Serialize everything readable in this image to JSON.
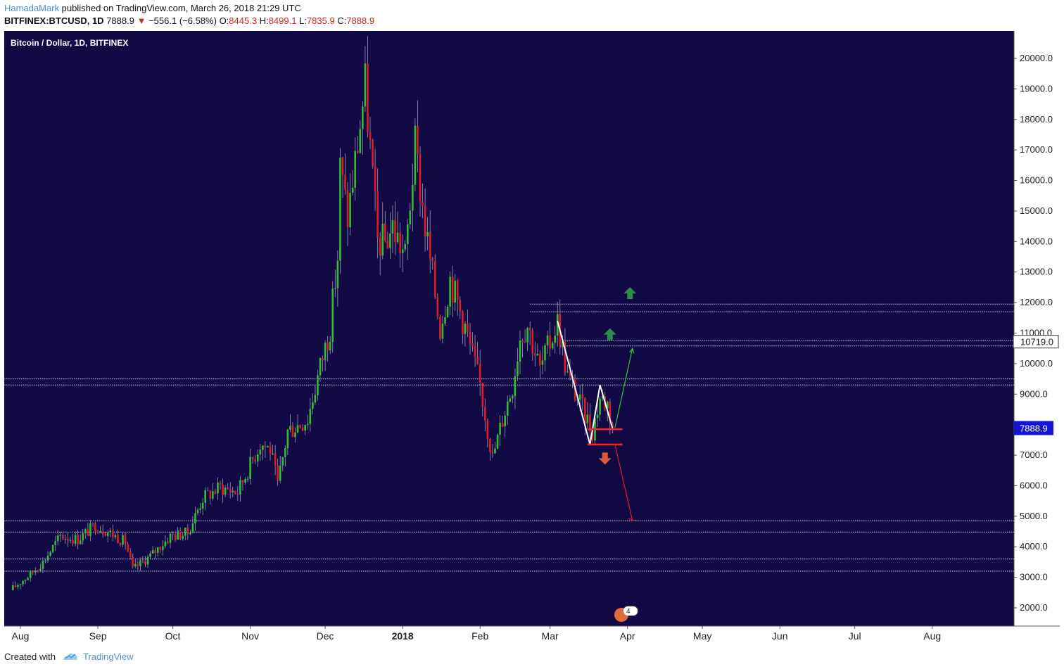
{
  "header": {
    "author": "HamadaMark",
    "published": " published on TradingView.com, March 26, 2018 21:29 UTC",
    "symbol": "BITFINEX:BTCUSD, 1D",
    "last": "7888.9",
    "change": "−556.1 (−6.58%)",
    "o_label": "O:",
    "o_val": "8445.3",
    "h_label": "H:",
    "h_val": "8499.1",
    "l_label": "L:",
    "l_val": "7835.9",
    "c_label": "C:",
    "c_val": "7888.9"
  },
  "footer": {
    "created_with": "Created with",
    "brand": "TradingView"
  },
  "colors": {
    "background": "#110a45",
    "up": "#2fbf2f",
    "down": "#e01b24",
    "badge": "#1414d2",
    "up_arrow": "#2e8b4a",
    "down_arrow": "#e05a3a"
  },
  "chart_data": {
    "type": "candlestick",
    "title": "Bitcoin / Dollar, 1D, BITFINEX",
    "ylim": [
      1800,
      20600
    ],
    "y_ticks": [
      "20000.0",
      "19000.0",
      "18000.0",
      "17000.0",
      "16000.0",
      "15000.0",
      "14000.0",
      "13000.0",
      "12000.0",
      "11000.0",
      "10000.0",
      "9000.0",
      "8000.0",
      "7000.0",
      "6000.0",
      "5000.0",
      "4000.0",
      "3000.0",
      "2000.0"
    ],
    "x_ticks": [
      {
        "label": "Aug",
        "date": "2017-08-01",
        "bold": false
      },
      {
        "label": "Sep",
        "date": "2017-09-01",
        "bold": false
      },
      {
        "label": "Oct",
        "date": "2017-10-01",
        "bold": false
      },
      {
        "label": "Nov",
        "date": "2017-11-01",
        "bold": false
      },
      {
        "label": "Dec",
        "date": "2017-12-01",
        "bold": false
      },
      {
        "label": "2018",
        "date": "2018-01-01",
        "bold": true
      },
      {
        "label": "Feb",
        "date": "2018-02-01",
        "bold": false
      },
      {
        "label": "Mar",
        "date": "2018-03-01",
        "bold": false
      },
      {
        "label": "Apr",
        "date": "2018-04-01",
        "bold": false
      },
      {
        "label": "May",
        "date": "2018-05-01",
        "bold": false
      },
      {
        "label": "Jun",
        "date": "2018-06-01",
        "bold": false
      },
      {
        "label": "Jul",
        "date": "2018-07-01",
        "bold": false
      },
      {
        "label": "Aug",
        "date": "2018-08-01",
        "bold": false
      }
    ],
    "price_path": [
      [
        "2017-07-28",
        2580
      ],
      [
        "2017-08-05",
        3100
      ],
      [
        "2017-08-10",
        3500
      ],
      [
        "2017-08-17",
        4350
      ],
      [
        "2017-08-24",
        4250
      ],
      [
        "2017-08-31",
        4700
      ],
      [
        "2017-09-05",
        4500
      ],
      [
        "2017-09-12",
        4150
      ],
      [
        "2017-09-15",
        3250
      ],
      [
        "2017-09-22",
        3700
      ],
      [
        "2017-09-30",
        4350
      ],
      [
        "2017-10-07",
        4450
      ],
      [
        "2017-10-13",
        5600
      ],
      [
        "2017-10-20",
        5950
      ],
      [
        "2017-10-27",
        5800
      ],
      [
        "2017-11-05",
        7400
      ],
      [
        "2017-11-09",
        7200
      ],
      [
        "2017-11-12",
        6000
      ],
      [
        "2017-11-16",
        7800
      ],
      [
        "2017-11-24",
        8200
      ],
      [
        "2017-11-29",
        9900
      ],
      [
        "2017-12-03",
        11200
      ],
      [
        "2017-12-06",
        13500
      ],
      [
        "2017-12-07",
        16400
      ],
      [
        "2017-12-10",
        14800
      ],
      [
        "2017-12-13",
        16600
      ],
      [
        "2017-12-17",
        19100
      ],
      [
        "2017-12-22",
        14000
      ],
      [
        "2017-12-25",
        14000
      ],
      [
        "2017-12-28",
        14500
      ],
      [
        "2018-01-02",
        13500
      ],
      [
        "2018-01-06",
        17100
      ],
      [
        "2018-01-10",
        14500
      ],
      [
        "2018-01-16",
        11200
      ],
      [
        "2018-01-20",
        12800
      ],
      [
        "2018-01-26",
        11200
      ],
      [
        "2018-02-01",
        9300
      ],
      [
        "2018-02-06",
        6900
      ],
      [
        "2018-02-10",
        8200
      ],
      [
        "2018-02-14",
        9300
      ],
      [
        "2018-02-17",
        10900
      ],
      [
        "2018-02-20",
        11300
      ],
      [
        "2018-02-25",
        9800
      ],
      [
        "2018-03-01",
        10700
      ],
      [
        "2018-03-04",
        11400
      ],
      [
        "2018-03-08",
        9600
      ],
      [
        "2018-03-14",
        8500
      ],
      [
        "2018-03-18",
        7800
      ],
      [
        "2018-03-21",
        8900
      ],
      [
        "2018-03-24",
        8700
      ],
      [
        "2018-03-26",
        7888.9
      ]
    ],
    "h_levels": [
      11950,
      11700,
      10750,
      10580,
      9500,
      9300,
      4850,
      4480,
      3600,
      3200
    ],
    "last_price": 7888.9,
    "last_price_label": "7888.9",
    "level_label": "10719.0",
    "level_value": 10719,
    "annotations": {
      "zigzag": [
        [
          "2018-03-04",
          11400
        ],
        [
          "2018-03-17",
          7350
        ],
        [
          "2018-03-21",
          9300
        ],
        [
          "2018-03-26",
          7888.9
        ]
      ],
      "support_upper": {
        "from": "2018-03-16",
        "to": "2018-03-30",
        "y": 7850
      },
      "support_lower": {
        "from": "2018-03-16",
        "to": "2018-03-30",
        "y": 7350
      },
      "up_projection": [
        [
          "2018-03-27",
          7900
        ],
        [
          "2018-04-03",
          10500
        ]
      ],
      "down_projection": [
        [
          "2018-03-27",
          7350
        ],
        [
          "2018-04-03",
          4850
        ]
      ],
      "up_arrows": [
        [
          "2018-03-25",
          10950
        ],
        [
          "2018-04-02",
          12300
        ]
      ],
      "down_arrow": [
        "2018-03-23",
        6900
      ]
    },
    "event_badge": "4"
  }
}
